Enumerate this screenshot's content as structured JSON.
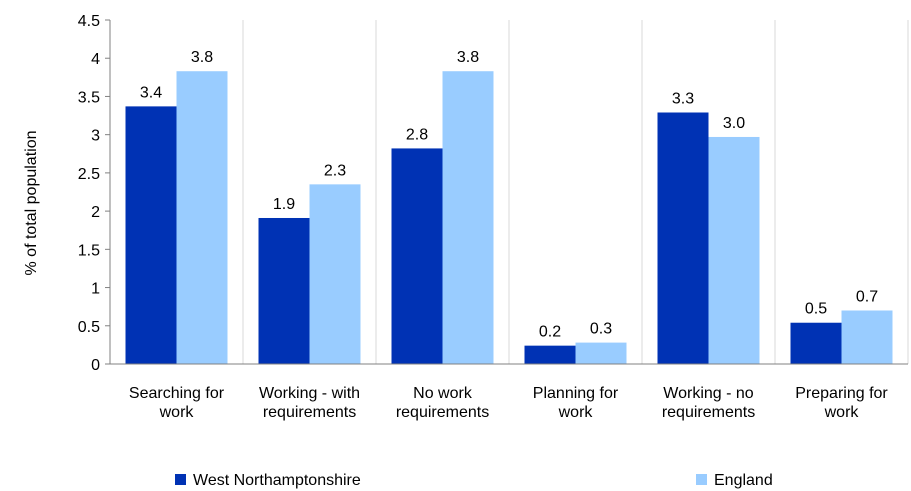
{
  "chart_data": {
    "type": "bar",
    "ylabel": "% of total population",
    "ylim": [
      0,
      4.5
    ],
    "ytick_step": 0.5,
    "yticks": [
      "0",
      "0.5",
      "1",
      "1.5",
      "2",
      "2.5",
      "3",
      "3.5",
      "4",
      "4.5"
    ],
    "categories": [
      [
        "Searching for",
        "work"
      ],
      [
        "Working - with",
        "requirements"
      ],
      [
        "No work",
        "requirements"
      ],
      [
        "Planning for",
        "work"
      ],
      [
        "Working - no",
        "requirements"
      ],
      [
        "Preparing for",
        "work"
      ]
    ],
    "series": [
      {
        "name": "West Northamptonshire",
        "color": "#0032b4",
        "values": [
          3.37,
          1.91,
          2.82,
          0.24,
          3.29,
          0.54
        ],
        "labels": [
          "3.4",
          "1.9",
          "2.8",
          "0.2",
          "3.3",
          "0.5"
        ]
      },
      {
        "name": "England",
        "color": "#99ccff",
        "values": [
          3.83,
          2.35,
          3.83,
          0.28,
          2.97,
          0.7
        ],
        "labels": [
          "3.8",
          "2.3",
          "3.8",
          "0.3",
          "3.0",
          "0.7"
        ]
      }
    ],
    "grid": "vertical separators",
    "legend_position": "bottom"
  }
}
